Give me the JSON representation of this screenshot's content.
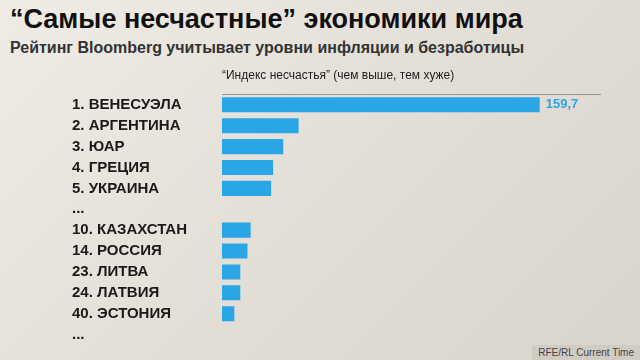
{
  "chart_data": {
    "type": "bar",
    "title": "“Самые несчастные” экономики мира",
    "subtitle": "Рейтинг Bloomberg учитывает уровни инфляции и безработицы",
    "xlabel": "“Индекс несчастья” (чем выше, тем хуже)",
    "source": "RFE/RL Current Time",
    "orientation": "horizontal",
    "categories": [
      "1. ВЕНЕСУЭЛА",
      "2. АРГЕНТИНА",
      "3. ЮАР",
      "4. ГРЕЦИЯ",
      "5. УКРАИНА",
      "...",
      "10. КАЗАХСТАН",
      "14. РОССИЯ",
      "23. ЛИТВА",
      "24. ЛАТВИЯ",
      "40. ЭСТОНИЯ",
      "..."
    ],
    "values": [
      159.7,
      38.5,
      30.8,
      25.7,
      24.7,
      null,
      14.4,
      12.8,
      9.2,
      9.2,
      6.2,
      null
    ],
    "value_labels": [
      "159,7",
      null,
      null,
      null,
      null,
      null,
      null,
      null,
      null,
      null,
      null,
      null
    ],
    "data_labels": true,
    "color": "#2aa6e6",
    "xlim": [
      0,
      190
    ],
    "grid": false,
    "tick_labels": "y"
  }
}
